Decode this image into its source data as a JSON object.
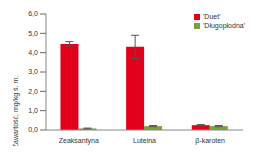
{
  "chart_data": {
    "type": "bar",
    "y_label": "Zawartość, mg/kg ś. m.",
    "categories": [
      "Zeaksantyna",
      "Luteina",
      "β-karoten"
    ],
    "series": [
      {
        "name": "'Duet'",
        "color": "#e2001a",
        "values": [
          4.45,
          4.3,
          0.25
        ],
        "errors": [
          0.12,
          0.6,
          0.03
        ]
      },
      {
        "name": "'Długopłodna'",
        "color": "#7f9f3f",
        "values": [
          0.08,
          0.2,
          0.2
        ],
        "errors": [
          0.02,
          0.03,
          0.03
        ]
      }
    ],
    "ylim": [
      0,
      6
    ],
    "yticks": [
      {
        "value": 0,
        "label": "0,0"
      },
      {
        "value": 1,
        "label": "1,0"
      },
      {
        "value": 2,
        "label": "2,0"
      },
      {
        "value": 3,
        "label": "3,0"
      },
      {
        "value": 4,
        "label": "4,0"
      },
      {
        "value": 5,
        "label": "5,0"
      },
      {
        "value": 6,
        "label": "6,0"
      }
    ],
    "grid": false,
    "legend": "top-right"
  }
}
